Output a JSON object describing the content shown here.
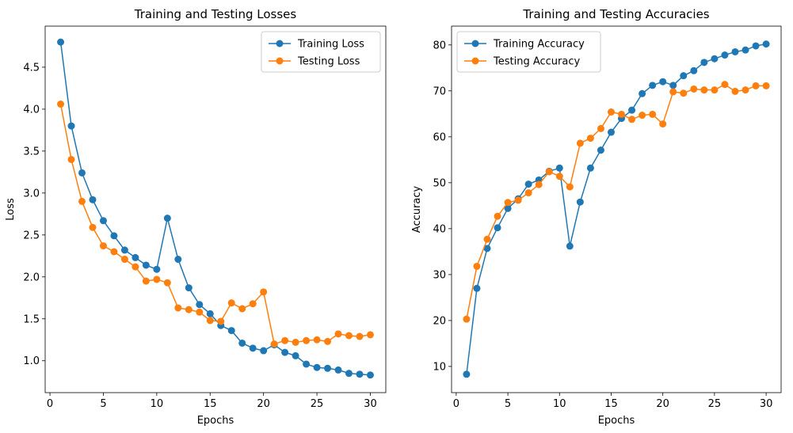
{
  "chart_data": [
    {
      "type": "line",
      "title": "Training and Testing Losses",
      "xlabel": "Epochs",
      "ylabel": "Loss",
      "xlim": [
        -0.45,
        31.45
      ],
      "ylim": [
        0.62,
        4.99
      ],
      "xticks": [
        0,
        5,
        10,
        15,
        20,
        25,
        30
      ],
      "yticks": [
        1.0,
        1.5,
        2.0,
        2.5,
        3.0,
        3.5,
        4.0,
        4.5
      ],
      "ytick_labels": [
        "1.0",
        "1.5",
        "2.0",
        "2.5",
        "3.0",
        "3.5",
        "4.0",
        "4.5"
      ],
      "legend_position": "top-right",
      "x": [
        1,
        2,
        3,
        4,
        5,
        6,
        7,
        8,
        9,
        10,
        11,
        12,
        13,
        14,
        15,
        16,
        17,
        18,
        19,
        20,
        21,
        22,
        23,
        24,
        25,
        26,
        27,
        28,
        29,
        30
      ],
      "series": [
        {
          "name": "Training Loss",
          "color": "#1f77b4",
          "values": [
            4.8,
            3.8,
            3.24,
            2.92,
            2.67,
            2.49,
            2.32,
            2.23,
            2.14,
            2.09,
            2.7,
            2.21,
            1.87,
            1.67,
            1.56,
            1.42,
            1.36,
            1.21,
            1.15,
            1.12,
            1.19,
            1.1,
            1.06,
            0.96,
            0.92,
            0.91,
            0.89,
            0.85,
            0.84,
            0.83
          ]
        },
        {
          "name": "Testing Loss",
          "color": "#ff7f0e",
          "values": [
            4.06,
            3.4,
            2.9,
            2.59,
            2.37,
            2.3,
            2.21,
            2.12,
            1.95,
            1.97,
            1.93,
            1.63,
            1.61,
            1.58,
            1.48,
            1.47,
            1.69,
            1.62,
            1.68,
            1.82,
            1.2,
            1.24,
            1.22,
            1.24,
            1.25,
            1.23,
            1.32,
            1.3,
            1.29,
            1.31
          ]
        }
      ]
    },
    {
      "type": "line",
      "title": "Training and Testing Accuracies",
      "xlabel": "Epochs",
      "ylabel": "Accuracy",
      "xlim": [
        -0.45,
        31.45
      ],
      "ylim": [
        4.3,
        84.1
      ],
      "xticks": [
        0,
        5,
        10,
        15,
        20,
        25,
        30
      ],
      "yticks": [
        10,
        20,
        30,
        40,
        50,
        60,
        70,
        80
      ],
      "ytick_labels": [
        "10",
        "20",
        "30",
        "40",
        "50",
        "60",
        "70",
        "80"
      ],
      "legend_position": "top-left",
      "x": [
        1,
        2,
        3,
        4,
        5,
        6,
        7,
        8,
        9,
        10,
        11,
        12,
        13,
        14,
        15,
        16,
        17,
        18,
        19,
        20,
        21,
        22,
        23,
        24,
        25,
        26,
        27,
        28,
        29,
        30
      ],
      "series": [
        {
          "name": "Training Accuracy",
          "color": "#1f77b4",
          "values": [
            8.3,
            27.0,
            35.7,
            40.2,
            44.4,
            46.5,
            49.7,
            50.6,
            52.5,
            53.2,
            36.2,
            45.8,
            53.2,
            57.1,
            61.0,
            64.0,
            65.8,
            69.4,
            71.2,
            72.0,
            71.2,
            73.3,
            74.4,
            76.2,
            77.0,
            77.8,
            78.5,
            78.9,
            79.8,
            80.2
          ]
        },
        {
          "name": "Testing Accuracy",
          "color": "#ff7f0e",
          "values": [
            20.3,
            31.8,
            37.7,
            42.7,
            45.7,
            46.2,
            47.8,
            49.6,
            52.4,
            51.4,
            49.1,
            58.6,
            59.7,
            61.8,
            65.4,
            64.9,
            63.8,
            64.7,
            64.9,
            62.8,
            69.8,
            69.5,
            70.4,
            70.2,
            70.2,
            71.4,
            69.9,
            70.2,
            71.1,
            71.1
          ]
        }
      ]
    }
  ]
}
